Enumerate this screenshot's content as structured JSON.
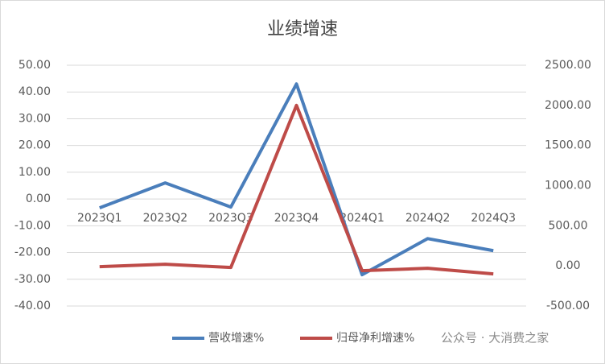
{
  "chart_data": {
    "type": "line",
    "title": "业绩增速",
    "categories": [
      "2023Q1",
      "2023Q2",
      "2023Q3",
      "2023Q4",
      "2024Q1",
      "2024Q2",
      "2024Q3"
    ],
    "series": [
      {
        "name": "营收增速%",
        "color": "#4a7ebb",
        "values": [
          -3.3,
          6,
          -3,
          43,
          -28.3,
          -14.8,
          -19.3
        ]
      },
      {
        "name": "归母净利增速%",
        "color": "#be4b48",
        "axis": "y2",
        "values": [
          -10,
          20,
          -20,
          2000,
          -60,
          -30,
          -100
        ]
      }
    ],
    "ylim": [
      -40,
      50
    ],
    "yticks": [
      {
        "value": -40,
        "label": "-40.00"
      },
      {
        "value": -30,
        "label": "-30.00"
      },
      {
        "value": -20,
        "label": "-20.00"
      },
      {
        "value": -10,
        "label": "-10.00"
      },
      {
        "value": 0,
        "label": "0.00"
      },
      {
        "value": 10,
        "label": "10.00"
      },
      {
        "value": 20,
        "label": "20.00"
      },
      {
        "value": 30,
        "label": "30.00"
      },
      {
        "value": 40,
        "label": "40.00"
      },
      {
        "value": 50,
        "label": "50.00"
      }
    ],
    "y2lim": [
      -500,
      2500
    ],
    "y2ticks": [
      {
        "value": -500,
        "label": "-500.00"
      },
      {
        "value": 0,
        "label": "0.00"
      },
      {
        "value": 500,
        "label": "500.00"
      },
      {
        "value": 1000,
        "label": "1000.00"
      },
      {
        "value": 1500,
        "label": "1500.00"
      },
      {
        "value": 2000,
        "label": "2000.00"
      },
      {
        "value": 2500,
        "label": "2500.00"
      }
    ],
    "grid": true,
    "legend": "bottom",
    "annotation": "公众号 · 大消费之家"
  }
}
